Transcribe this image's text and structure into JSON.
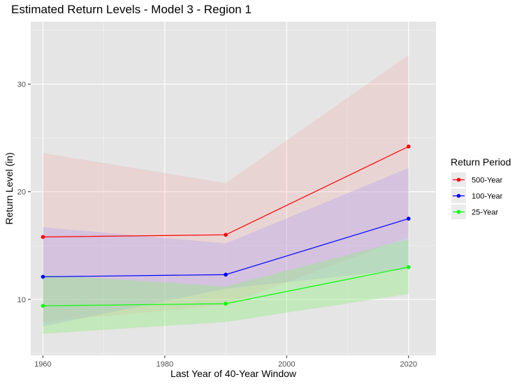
{
  "chart_data": {
    "type": "line",
    "title": "Estimated Return Levels - Model 3 - Region 1",
    "xlabel": "Last Year of 40-Year Window",
    "ylabel": "Return Level (in)",
    "x": [
      1960,
      1990,
      2020
    ],
    "xlim": [
      1958,
      2024.5
    ],
    "ylim": [
      4.8,
      35.8
    ],
    "x_ticks": [
      1960,
      1980,
      2000,
      2020
    ],
    "x_minor_ticks": [
      1970,
      1990,
      2010
    ],
    "y_ticks": [
      10,
      20,
      30
    ],
    "y_minor_ticks": [
      5,
      15,
      25,
      35
    ],
    "grid": true,
    "legend": {
      "title": "Return Period",
      "position": "right"
    },
    "series": [
      {
        "name": "500-Year",
        "color": "#ff0000",
        "values": [
          15.8,
          16.0,
          24.2
        ],
        "lower": [
          7.9,
          9.5,
          15.8
        ],
        "upper": [
          23.6,
          20.8,
          32.7
        ],
        "band_color": "#f7a3a3",
        "band_opacity": 0.25
      },
      {
        "name": "100-Year",
        "color": "#0000ff",
        "values": [
          12.1,
          12.3,
          17.5
        ],
        "lower": [
          7.5,
          11.0,
          12.8
        ],
        "upper": [
          16.7,
          15.2,
          22.2
        ],
        "band_color": "#b0a0f0",
        "band_opacity": 0.35
      },
      {
        "name": "25-Year",
        "color": "#00ff00",
        "values": [
          9.4,
          9.6,
          13.0
        ],
        "lower": [
          6.8,
          7.9,
          10.5
        ],
        "upper": [
          12.3,
          11.2,
          15.6
        ],
        "band_color": "#90ee80",
        "band_opacity": 0.4
      }
    ]
  }
}
